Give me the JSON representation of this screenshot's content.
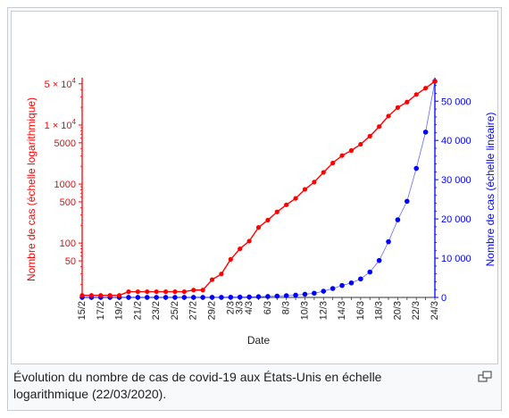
{
  "caption": "Évolution du nombre de cas de covid-19 aux États-Unis en échelle logarithmique (22/03/2020).",
  "icons": {
    "magnify": "magnify-icon"
  },
  "chart_data": {
    "type": "line",
    "xlabel": "Date",
    "categories": [
      "15/2",
      "16/2",
      "17/2",
      "18/2",
      "19/2",
      "20/2",
      "21/2",
      "22/2",
      "23/2",
      "24/2",
      "25/2",
      "26/2",
      "27/2",
      "28/2",
      "29/2",
      "1/3",
      "2/3",
      "3/3",
      "4/3",
      "5/3",
      "6/3",
      "7/3",
      "8/3",
      "9/3",
      "10/3",
      "11/3",
      "12/3",
      "13/3",
      "14/3",
      "15/3",
      "16/3",
      "17/3",
      "18/3",
      "19/3",
      "20/3",
      "21/3",
      "22/3",
      "23/3",
      "24/3"
    ],
    "tick_labels": [
      "15/2",
      "17/2",
      "19/2",
      "21/2",
      "23/2",
      "25/2",
      "27/2",
      "29/2",
      "2/3",
      "3/3",
      "4/3",
      "6/3",
      "8/3",
      "10/3",
      "12/3",
      "14/3",
      "16/3",
      "18/3",
      "20/3",
      "22/3",
      "24/3"
    ],
    "series": [
      {
        "name": "Nombre de cas (échelle logarithmique)",
        "axis": "left",
        "scale": "log",
        "color": "#ff0000",
        "values": [
          13,
          13,
          13,
          13,
          13,
          15,
          15,
          15,
          15,
          15,
          15,
          15,
          16,
          16,
          24,
          30,
          53,
          80,
          108,
          184,
          245,
          337,
          445,
          572,
          812,
          1079,
          1578,
          2274,
          3036,
          3699,
          4714,
          6471,
          9409,
          14192,
          19779,
          24493,
          32878,
          42132,
          55074
        ]
      },
      {
        "name": "Nombre de cas (échelle linéaire)",
        "axis": "right",
        "scale": "linear",
        "color": "#0000ff",
        "values": [
          13,
          13,
          13,
          13,
          13,
          15,
          15,
          15,
          15,
          15,
          15,
          15,
          16,
          16,
          24,
          30,
          53,
          80,
          108,
          184,
          245,
          337,
          445,
          572,
          812,
          1079,
          1578,
          2274,
          3036,
          3699,
          4714,
          6471,
          9409,
          14192,
          19779,
          24493,
          32878,
          42132,
          55074
        ]
      }
    ],
    "y_left": {
      "label": "Nombre de cas (échelle logarithmique)",
      "scale": "log",
      "range": [
        12,
        55074
      ],
      "ticks": [
        {
          "value": 50,
          "label": "50"
        },
        {
          "value": 100,
          "label": "100"
        },
        {
          "value": 500,
          "label": "500"
        },
        {
          "value": 1000,
          "label": "1000"
        },
        {
          "value": 5000,
          "label": "5000"
        },
        {
          "value": 10000,
          "label": "1 × 10",
          "sup": "4"
        },
        {
          "value": 50000,
          "label": "5 × 10",
          "sup": "4"
        }
      ]
    },
    "y_right": {
      "label": "Nombre de cas (échelle linéaire)",
      "scale": "linear",
      "range": [
        0,
        55074
      ],
      "ticks": [
        {
          "value": 0,
          "label": "0"
        },
        {
          "value": 10000,
          "label": "10 000"
        },
        {
          "value": 20000,
          "label": "20 000"
        },
        {
          "value": 30000,
          "label": "30 000"
        },
        {
          "value": 40000,
          "label": "40 000"
        },
        {
          "value": 50000,
          "label": "50 000"
        }
      ]
    },
    "grid": false
  }
}
